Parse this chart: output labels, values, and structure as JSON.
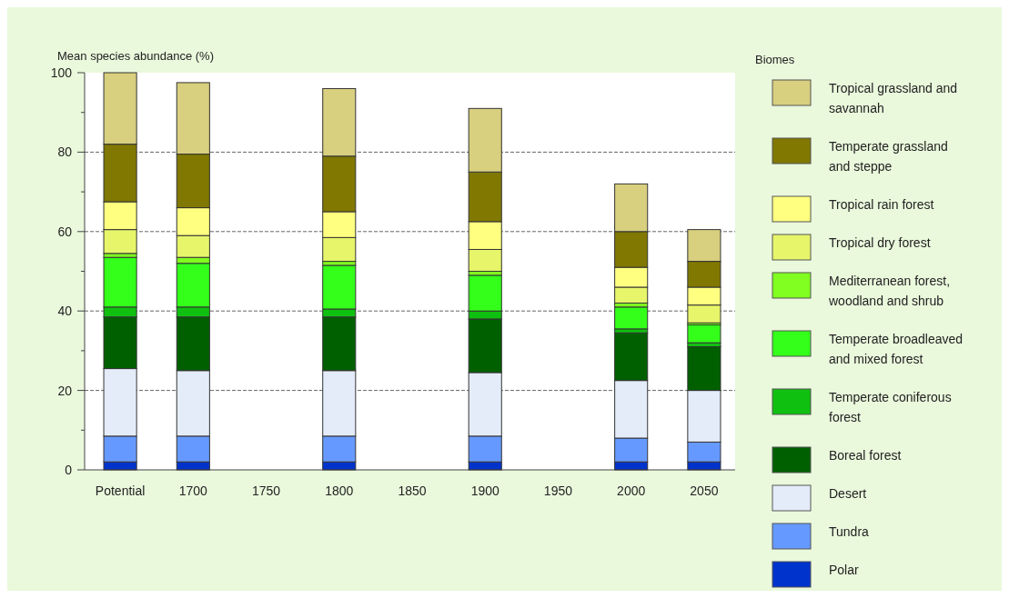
{
  "chart_data": {
    "type": "bar",
    "stacked": true,
    "ylabel": "Mean species abundance (%)",
    "legend_title": "Biomes",
    "legend": "right",
    "grid": "y",
    "categories": [
      "Potential",
      "1700",
      "1750",
      "1800",
      "1850",
      "1900",
      "1950",
      "2000",
      "2050"
    ],
    "ylim": [
      0,
      100
    ],
    "yticks": [
      0,
      {
        "value": 10,
        "label": null
      },
      20,
      {
        "value": 30,
        "label": null
      },
      40,
      {
        "value": 50,
        "label": null
      },
      60,
      {
        "value": 70,
        "label": null
      },
      80,
      {
        "value": 90,
        "label": null
      },
      100
    ],
    "series": [
      {
        "name": "Polar",
        "color": "#0033cc",
        "values": [
          2,
          2,
          null,
          2,
          null,
          2,
          null,
          2,
          2
        ]
      },
      {
        "name": "Tundra",
        "color": "#6699ff",
        "values": [
          6.5,
          6.5,
          null,
          6.5,
          null,
          6.5,
          null,
          6,
          5
        ]
      },
      {
        "name": "Desert",
        "color": "#e4ecfa",
        "values": [
          17,
          16.5,
          null,
          16.5,
          null,
          16,
          null,
          14.5,
          13
        ]
      },
      {
        "name": "Boreal forest",
        "color": "#006000",
        "values": [
          13,
          13.5,
          null,
          13.5,
          null,
          13.5,
          null,
          12,
          11
        ]
      },
      {
        "name": "Temperate coniferous forest",
        "color": "#10c010",
        "values": [
          2.5,
          2.5,
          null,
          2,
          null,
          2,
          null,
          1,
          1
        ]
      },
      {
        "name": "Temperate broadleaved and mixed forest",
        "color": "#33ff1a",
        "values": [
          12.5,
          11,
          null,
          11,
          null,
          9,
          null,
          5.5,
          4.5
        ]
      },
      {
        "name": "Mediterranean forest, woodland and shrub",
        "color": "#80ff20",
        "values": [
          1,
          1.5,
          null,
          1,
          null,
          1,
          null,
          1,
          0.5
        ]
      },
      {
        "name": "Tropical dry forest",
        "color": "#e6f56a",
        "values": [
          6,
          5.5,
          null,
          6,
          null,
          5.5,
          null,
          4,
          4.5
        ]
      },
      {
        "name": "Tropical rain forest",
        "color": "#ffff80",
        "values": [
          7,
          7,
          null,
          6.5,
          null,
          7,
          null,
          5,
          4.5
        ]
      },
      {
        "name": "Temperate grassland and steppe",
        "color": "#807800",
        "values": [
          14.5,
          13.5,
          null,
          14,
          null,
          12.5,
          null,
          9,
          6.5
        ]
      },
      {
        "name": "Tropical grassland and savannah",
        "color": "#d8cf7f",
        "values": [
          18,
          18,
          null,
          17,
          null,
          16,
          null,
          12,
          8
        ]
      }
    ]
  }
}
